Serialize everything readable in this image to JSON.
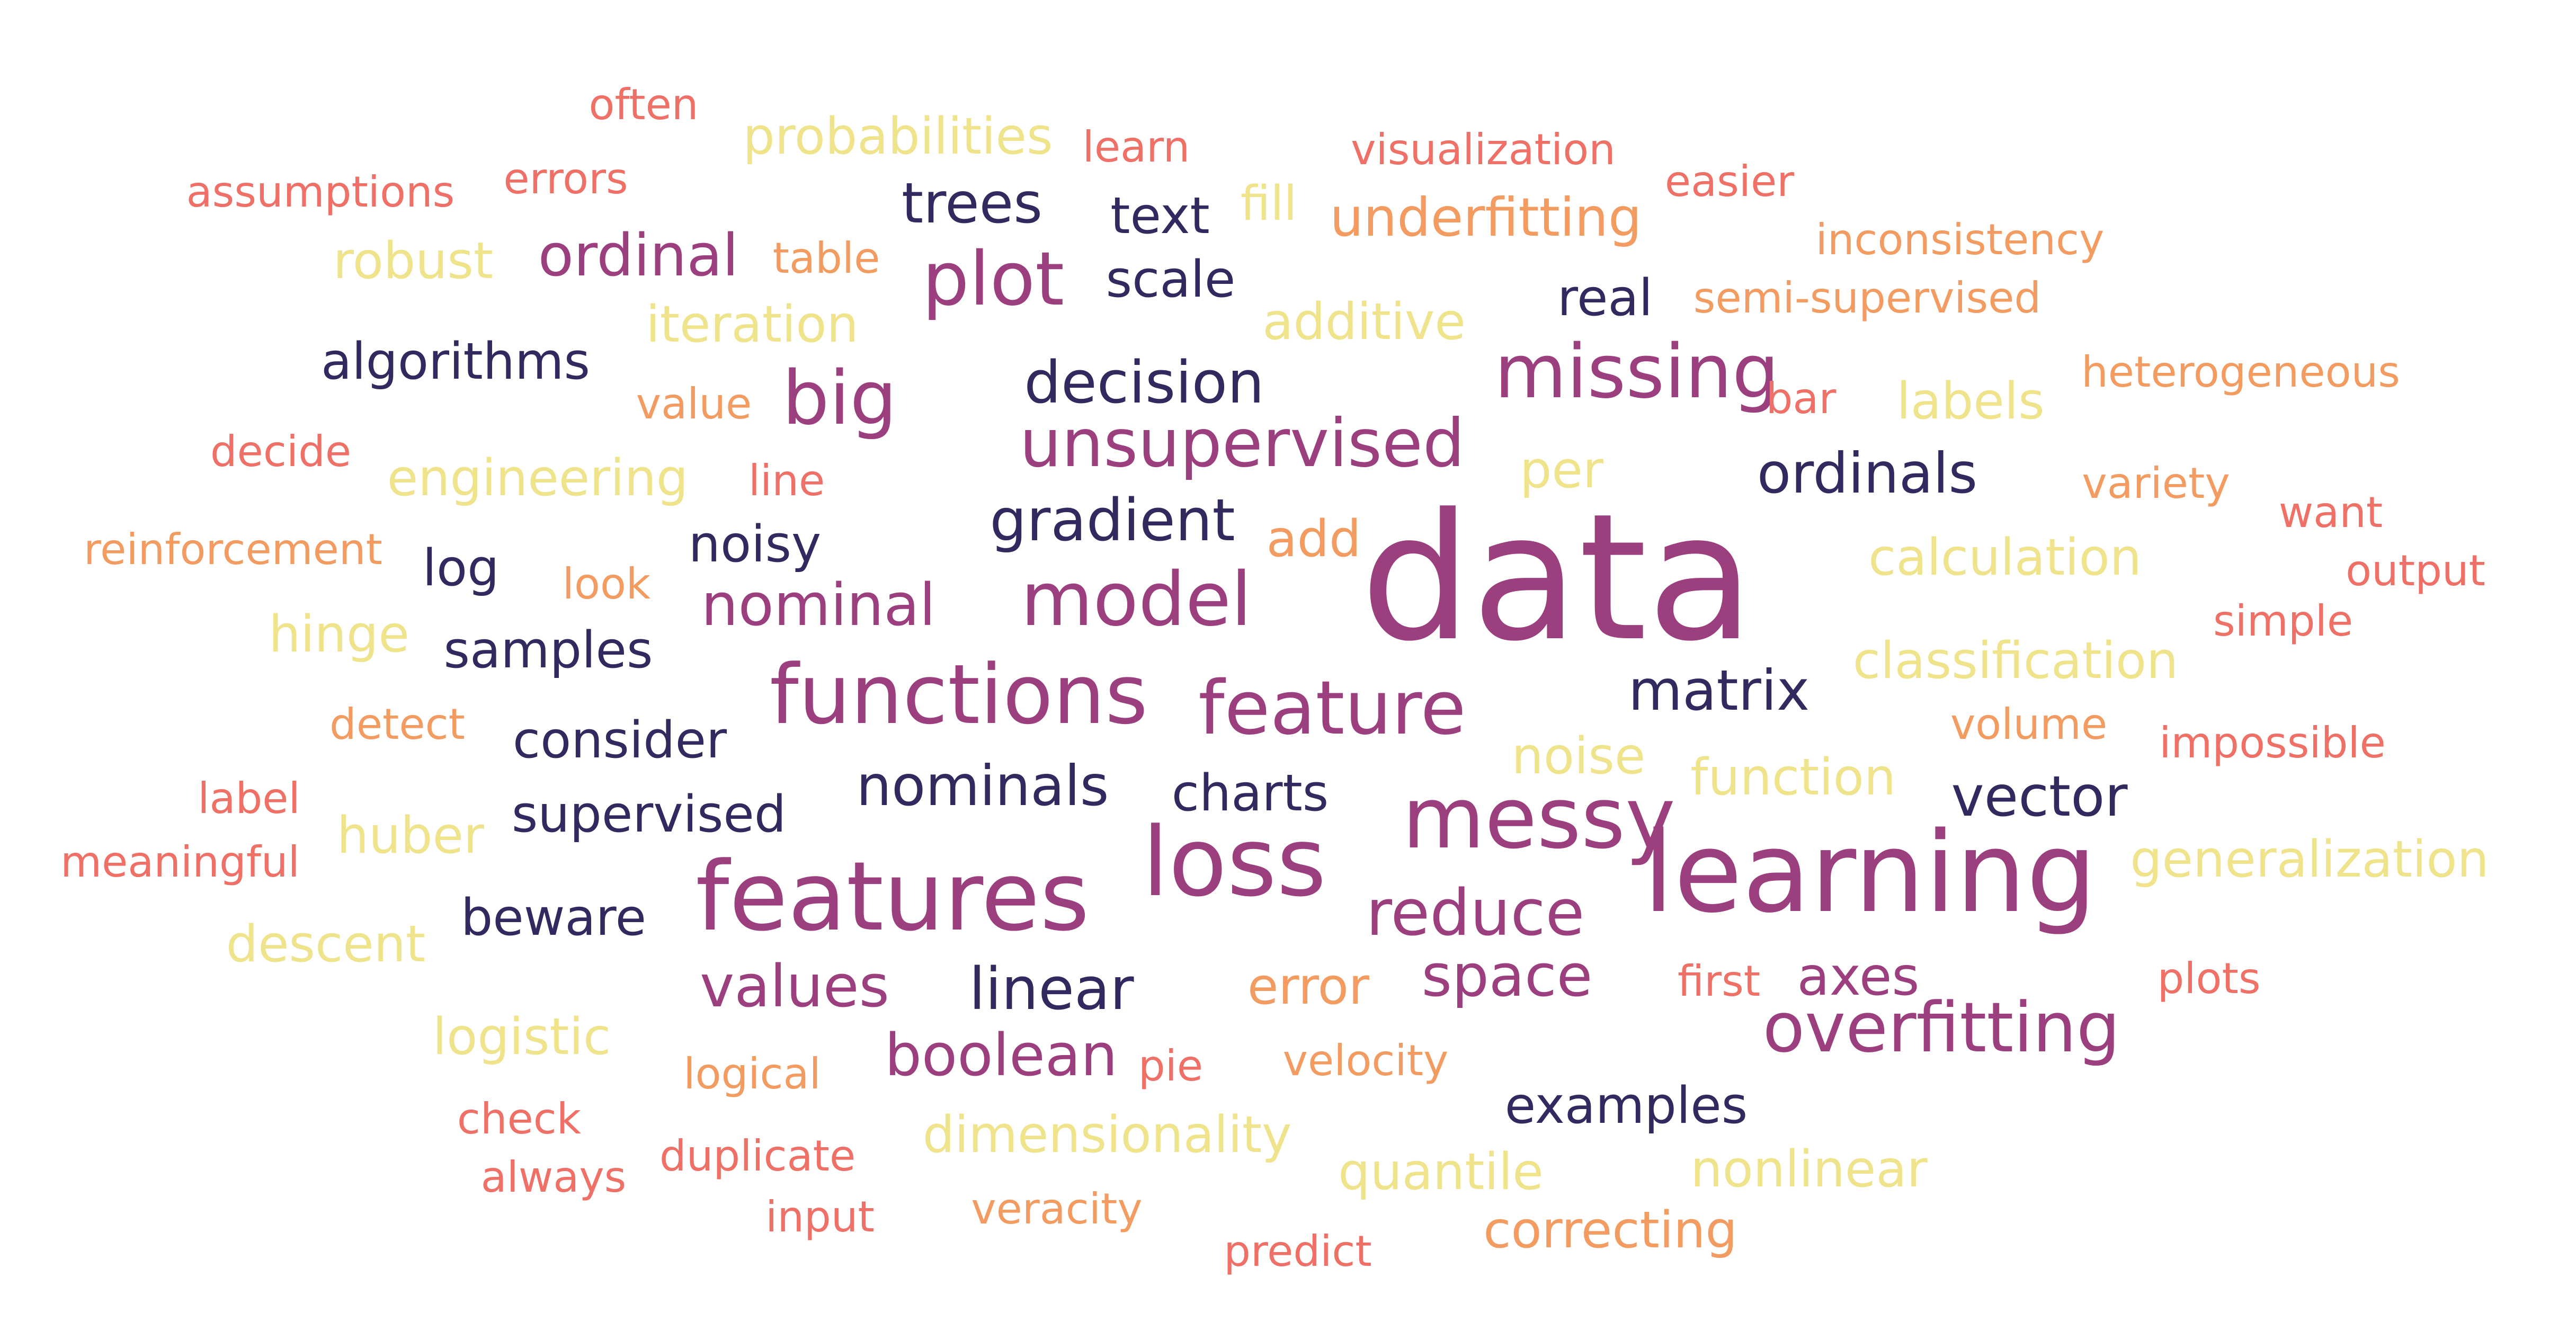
{
  "palette": {
    "navy": "#312a5e",
    "plum": "#9c3f7e",
    "coral": "#ee7066",
    "orange": "#f29c62",
    "yellow": "#efe38b"
  },
  "words": [
    {
      "text": "data",
      "color": "plum"
    },
    {
      "text": "learning",
      "color": "plum"
    },
    {
      "text": "features",
      "color": "plum"
    },
    {
      "text": "loss",
      "color": "plum"
    },
    {
      "text": "messy",
      "color": "plum"
    },
    {
      "text": "functions",
      "color": "plum"
    },
    {
      "text": "missing",
      "color": "plum"
    },
    {
      "text": "plot",
      "color": "plum"
    },
    {
      "text": "big",
      "color": "plum"
    },
    {
      "text": "model",
      "color": "plum"
    },
    {
      "text": "feature",
      "color": "plum"
    },
    {
      "text": "unsupervised",
      "color": "plum"
    },
    {
      "text": "overfitting",
      "color": "plum"
    },
    {
      "text": "reduce",
      "color": "plum"
    },
    {
      "text": "ordinal",
      "color": "plum"
    },
    {
      "text": "nominal",
      "color": "plum"
    },
    {
      "text": "values",
      "color": "plum"
    },
    {
      "text": "space",
      "color": "plum"
    },
    {
      "text": "boolean",
      "color": "plum"
    },
    {
      "text": "axes",
      "color": "plum"
    },
    {
      "text": "trees",
      "color": "navy"
    },
    {
      "text": "text",
      "color": "navy"
    },
    {
      "text": "scale",
      "color": "navy"
    },
    {
      "text": "real",
      "color": "navy"
    },
    {
      "text": "decision",
      "color": "navy"
    },
    {
      "text": "algorithms",
      "color": "navy"
    },
    {
      "text": "gradient",
      "color": "navy"
    },
    {
      "text": "ordinals",
      "color": "navy"
    },
    {
      "text": "log",
      "color": "navy"
    },
    {
      "text": "noisy",
      "color": "navy"
    },
    {
      "text": "samples",
      "color": "navy"
    },
    {
      "text": "matrix",
      "color": "navy"
    },
    {
      "text": "consider",
      "color": "navy"
    },
    {
      "text": "nominals",
      "color": "navy"
    },
    {
      "text": "charts",
      "color": "navy"
    },
    {
      "text": "vector",
      "color": "navy"
    },
    {
      "text": "supervised",
      "color": "navy"
    },
    {
      "text": "beware",
      "color": "navy"
    },
    {
      "text": "linear",
      "color": "navy"
    },
    {
      "text": "examples",
      "color": "navy"
    },
    {
      "text": "often",
      "color": "coral"
    },
    {
      "text": "assumptions",
      "color": "coral"
    },
    {
      "text": "errors",
      "color": "coral"
    },
    {
      "text": "learn",
      "color": "coral"
    },
    {
      "text": "visualization",
      "color": "coral"
    },
    {
      "text": "easier",
      "color": "coral"
    },
    {
      "text": "decide",
      "color": "coral"
    },
    {
      "text": "line",
      "color": "coral"
    },
    {
      "text": "bar",
      "color": "coral"
    },
    {
      "text": "want",
      "color": "coral"
    },
    {
      "text": "output",
      "color": "coral"
    },
    {
      "text": "simple",
      "color": "coral"
    },
    {
      "text": "label",
      "color": "coral"
    },
    {
      "text": "meaningful",
      "color": "coral"
    },
    {
      "text": "impossible",
      "color": "coral"
    },
    {
      "text": "plots",
      "color": "coral"
    },
    {
      "text": "first",
      "color": "coral"
    },
    {
      "text": "pie",
      "color": "coral"
    },
    {
      "text": "check",
      "color": "coral"
    },
    {
      "text": "always",
      "color": "coral"
    },
    {
      "text": "duplicate",
      "color": "coral"
    },
    {
      "text": "input",
      "color": "coral"
    },
    {
      "text": "predict",
      "color": "coral"
    },
    {
      "text": "table",
      "color": "orange"
    },
    {
      "text": "underfitting",
      "color": "orange"
    },
    {
      "text": "inconsistency",
      "color": "orange"
    },
    {
      "text": "semi-supervised",
      "color": "orange"
    },
    {
      "text": "value",
      "color": "orange"
    },
    {
      "text": "heterogeneous",
      "color": "orange"
    },
    {
      "text": "variety",
      "color": "orange"
    },
    {
      "text": "reinforcement",
      "color": "orange"
    },
    {
      "text": "look",
      "color": "orange"
    },
    {
      "text": "add",
      "color": "orange"
    },
    {
      "text": "detect",
      "color": "orange"
    },
    {
      "text": "volume",
      "color": "orange"
    },
    {
      "text": "error",
      "color": "orange"
    },
    {
      "text": "velocity",
      "color": "orange"
    },
    {
      "text": "logical",
      "color": "orange"
    },
    {
      "text": "veracity",
      "color": "orange"
    },
    {
      "text": "correcting",
      "color": "orange"
    },
    {
      "text": "probabilities",
      "color": "yellow"
    },
    {
      "text": "robust",
      "color": "yellow"
    },
    {
      "text": "fill",
      "color": "yellow"
    },
    {
      "text": "iteration",
      "color": "yellow"
    },
    {
      "text": "additive",
      "color": "yellow"
    },
    {
      "text": "labels",
      "color": "yellow"
    },
    {
      "text": "engineering",
      "color": "yellow"
    },
    {
      "text": "per",
      "color": "yellow"
    },
    {
      "text": "calculation",
      "color": "yellow"
    },
    {
      "text": "hinge",
      "color": "yellow"
    },
    {
      "text": "classification",
      "color": "yellow"
    },
    {
      "text": "noise",
      "color": "yellow"
    },
    {
      "text": "function",
      "color": "yellow"
    },
    {
      "text": "huber",
      "color": "yellow"
    },
    {
      "text": "generalization",
      "color": "yellow"
    },
    {
      "text": "descent",
      "color": "yellow"
    },
    {
      "text": "logistic",
      "color": "yellow"
    },
    {
      "text": "dimensionality",
      "color": "yellow"
    },
    {
      "text": "quantile",
      "color": "yellow"
    },
    {
      "text": "nonlinear",
      "color": "yellow"
    }
  ]
}
